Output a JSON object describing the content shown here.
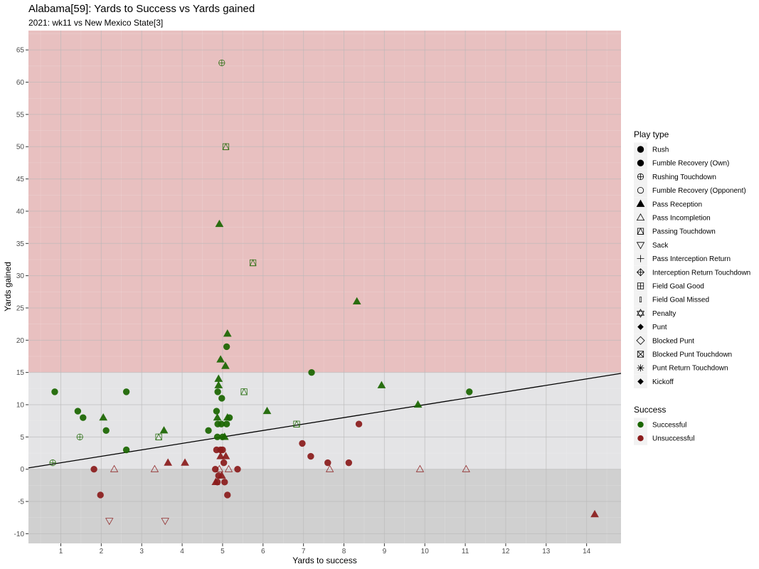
{
  "chart_data": {
    "type": "scatter",
    "title": "Alabama[59]: Yards to Success vs Yards gained",
    "subtitle": "2021: wk11 vs New Mexico State[3]",
    "xlabel": "Yards to success",
    "ylabel": "Yards gained",
    "xlim": [
      0.2,
      14.85
    ],
    "ylim": [
      -11.5,
      68
    ],
    "x_ticks": [
      "1",
      "2",
      "3",
      "4",
      "5",
      "6",
      "7",
      "8",
      "9",
      "10",
      "11",
      "12",
      "13",
      "14"
    ],
    "y_ticks": [
      "-10",
      "-5",
      "0",
      "5",
      "10",
      "15",
      "20",
      "25",
      "30",
      "35",
      "40",
      "45",
      "50",
      "55",
      "60",
      "65"
    ],
    "background_bands": [
      {
        "from": 15,
        "to": 68,
        "color": "#e8c0c0"
      },
      {
        "from": 0,
        "to": 15,
        "color": "#e4e4e6"
      },
      {
        "from": -11.5,
        "to": 0,
        "color": "#d0d0d0"
      }
    ],
    "reference_line": {
      "x1": 0.2,
      "y1": 0.2,
      "x2": 14.85,
      "y2": 14.85,
      "color": "#000000"
    },
    "colors": {
      "Successful": "#1a6600",
      "Unsuccessful": "#8b1c1c"
    },
    "legend_play_type": {
      "title": "Play type",
      "items": [
        {
          "label": "Rush",
          "shape": "circle"
        },
        {
          "label": "Fumble Recovery (Own)",
          "shape": "circle"
        },
        {
          "label": "Rushing Touchdown",
          "shape": "circle-plus"
        },
        {
          "label": "Fumble Recovery (Opponent)",
          "shape": "circle-open"
        },
        {
          "label": "Pass Reception",
          "shape": "triangle"
        },
        {
          "label": "Pass Incompletion",
          "shape": "triangle-open"
        },
        {
          "label": "Passing Touchdown",
          "shape": "square-triangle"
        },
        {
          "label": "Sack",
          "shape": "triangle-down-open"
        },
        {
          "label": "Pass Interception Return",
          "shape": "plus"
        },
        {
          "label": "Interception Return Touchdown",
          "shape": "diamond-plus"
        },
        {
          "label": "Field Goal Good",
          "shape": "square-plus"
        },
        {
          "label": "Field Goal Missed",
          "shape": "bar"
        },
        {
          "label": "Penalty",
          "shape": "star-david"
        },
        {
          "label": "Punt",
          "shape": "diamond-small"
        },
        {
          "label": "Blocked Punt",
          "shape": "diamond-open"
        },
        {
          "label": "Blocked Punt Touchdown",
          "shape": "square-x"
        },
        {
          "label": "Punt Return Touchdown",
          "shape": "asterisk"
        },
        {
          "label": "Kickoff",
          "shape": "diamond-small"
        }
      ]
    },
    "legend_success": {
      "title": "Success",
      "items": [
        {
          "label": "Successful",
          "color": "#1a6600"
        },
        {
          "label": "Unsuccessful",
          "color": "#8b1c1c"
        }
      ]
    },
    "series": [
      {
        "name": "Successful",
        "points": [
          {
            "x": 0.85,
            "y": 12,
            "type": "Rush"
          },
          {
            "x": 0.8,
            "y": 1,
            "type": "Rushing Touchdown"
          },
          {
            "x": 1.42,
            "y": 9,
            "type": "Rush"
          },
          {
            "x": 1.47,
            "y": 5,
            "type": "Rushing Touchdown"
          },
          {
            "x": 1.55,
            "y": 8,
            "type": "Rush"
          },
          {
            "x": 2.05,
            "y": 8,
            "type": "Pass Reception"
          },
          {
            "x": 2.12,
            "y": 6,
            "type": "Rush"
          },
          {
            "x": 2.62,
            "y": 12,
            "type": "Rush"
          },
          {
            "x": 2.62,
            "y": 3,
            "type": "Rush"
          },
          {
            "x": 3.42,
            "y": 5,
            "type": "Passing Touchdown"
          },
          {
            "x": 3.55,
            "y": 6,
            "type": "Pass Reception"
          },
          {
            "x": 4.65,
            "y": 6,
            "type": "Rush"
          },
          {
            "x": 4.85,
            "y": 9,
            "type": "Rush"
          },
          {
            "x": 4.87,
            "y": 8,
            "type": "Pass Reception"
          },
          {
            "x": 4.87,
            "y": 5,
            "type": "Rush"
          },
          {
            "x": 4.88,
            "y": 7,
            "type": "Rush"
          },
          {
            "x": 4.88,
            "y": 12,
            "type": "Rush"
          },
          {
            "x": 4.9,
            "y": 13,
            "type": "Pass Reception"
          },
          {
            "x": 4.9,
            "y": 14,
            "type": "Pass Reception"
          },
          {
            "x": 4.92,
            "y": 38,
            "type": "Pass Reception"
          },
          {
            "x": 4.95,
            "y": 17,
            "type": "Pass Reception"
          },
          {
            "x": 4.97,
            "y": 7,
            "type": "Rush"
          },
          {
            "x": 4.98,
            "y": 11,
            "type": "Rush"
          },
          {
            "x": 4.98,
            "y": 63,
            "type": "Rushing Touchdown"
          },
          {
            "x": 5.0,
            "y": 5,
            "type": "Rush"
          },
          {
            "x": 5.05,
            "y": 5,
            "type": "Pass Reception"
          },
          {
            "x": 5.07,
            "y": 16,
            "type": "Pass Reception"
          },
          {
            "x": 5.08,
            "y": 50,
            "type": "Passing Touchdown"
          },
          {
            "x": 5.1,
            "y": 7,
            "type": "Rush"
          },
          {
            "x": 5.1,
            "y": 19,
            "type": "Rush"
          },
          {
            "x": 5.12,
            "y": 8,
            "type": "Pass Reception"
          },
          {
            "x": 5.12,
            "y": 21,
            "type": "Pass Reception"
          },
          {
            "x": 5.17,
            "y": 8,
            "type": "Rush"
          },
          {
            "x": 5.53,
            "y": 12,
            "type": "Passing Touchdown"
          },
          {
            "x": 5.75,
            "y": 32,
            "type": "Passing Touchdown"
          },
          {
            "x": 6.1,
            "y": 9,
            "type": "Pass Reception"
          },
          {
            "x": 6.83,
            "y": 7,
            "type": "Passing Touchdown"
          },
          {
            "x": 7.2,
            "y": 15,
            "type": "Rush"
          },
          {
            "x": 8.32,
            "y": 26,
            "type": "Pass Reception"
          },
          {
            "x": 8.93,
            "y": 13,
            "type": "Pass Reception"
          },
          {
            "x": 9.83,
            "y": 10,
            "type": "Pass Reception"
          },
          {
            "x": 11.1,
            "y": 12,
            "type": "Rush"
          }
        ]
      },
      {
        "name": "Unsuccessful",
        "points": [
          {
            "x": 1.82,
            "y": 0,
            "type": "Rush"
          },
          {
            "x": 1.98,
            "y": -4,
            "type": "Rush"
          },
          {
            "x": 2.2,
            "y": -8,
            "type": "Sack"
          },
          {
            "x": 2.32,
            "y": 0,
            "type": "Pass Incompletion"
          },
          {
            "x": 3.32,
            "y": 0,
            "type": "Pass Incompletion"
          },
          {
            "x": 3.58,
            "y": -8,
            "type": "Sack"
          },
          {
            "x": 3.65,
            "y": 1,
            "type": "Pass Reception"
          },
          {
            "x": 4.07,
            "y": 1,
            "type": "Pass Reception"
          },
          {
            "x": 4.82,
            "y": 0,
            "type": "Rush"
          },
          {
            "x": 4.83,
            "y": -2,
            "type": "Pass Reception"
          },
          {
            "x": 4.85,
            "y": 3,
            "type": "Rush"
          },
          {
            "x": 4.87,
            "y": -2,
            "type": "Rush"
          },
          {
            "x": 4.9,
            "y": -1,
            "type": "Rush"
          },
          {
            "x": 4.92,
            "y": 0,
            "type": "Pass Incompletion"
          },
          {
            "x": 4.95,
            "y": 2,
            "type": "Pass Reception"
          },
          {
            "x": 4.95,
            "y": 3,
            "type": "Rush"
          },
          {
            "x": 4.98,
            "y": -1,
            "type": "Pass Reception"
          },
          {
            "x": 5.0,
            "y": 3,
            "type": "Rush"
          },
          {
            "x": 5.03,
            "y": 1,
            "type": "Rush"
          },
          {
            "x": 5.05,
            "y": -2,
            "type": "Rush"
          },
          {
            "x": 5.08,
            "y": 2,
            "type": "Pass Reception"
          },
          {
            "x": 5.12,
            "y": -4,
            "type": "Rush"
          },
          {
            "x": 5.15,
            "y": 0,
            "type": "Pass Incompletion"
          },
          {
            "x": 5.37,
            "y": 0,
            "type": "Rush"
          },
          {
            "x": 6.97,
            "y": 4,
            "type": "Rush"
          },
          {
            "x": 7.18,
            "y": 2,
            "type": "Rush"
          },
          {
            "x": 7.6,
            "y": 1,
            "type": "Rush"
          },
          {
            "x": 7.65,
            "y": 0,
            "type": "Pass Incompletion"
          },
          {
            "x": 8.12,
            "y": 1,
            "type": "Rush"
          },
          {
            "x": 8.37,
            "y": 7,
            "type": "Rush"
          },
          {
            "x": 9.88,
            "y": 0,
            "type": "Pass Incompletion"
          },
          {
            "x": 11.02,
            "y": 0,
            "type": "Pass Incompletion"
          },
          {
            "x": 14.2,
            "y": -7,
            "type": "Pass Reception"
          }
        ]
      }
    ]
  }
}
